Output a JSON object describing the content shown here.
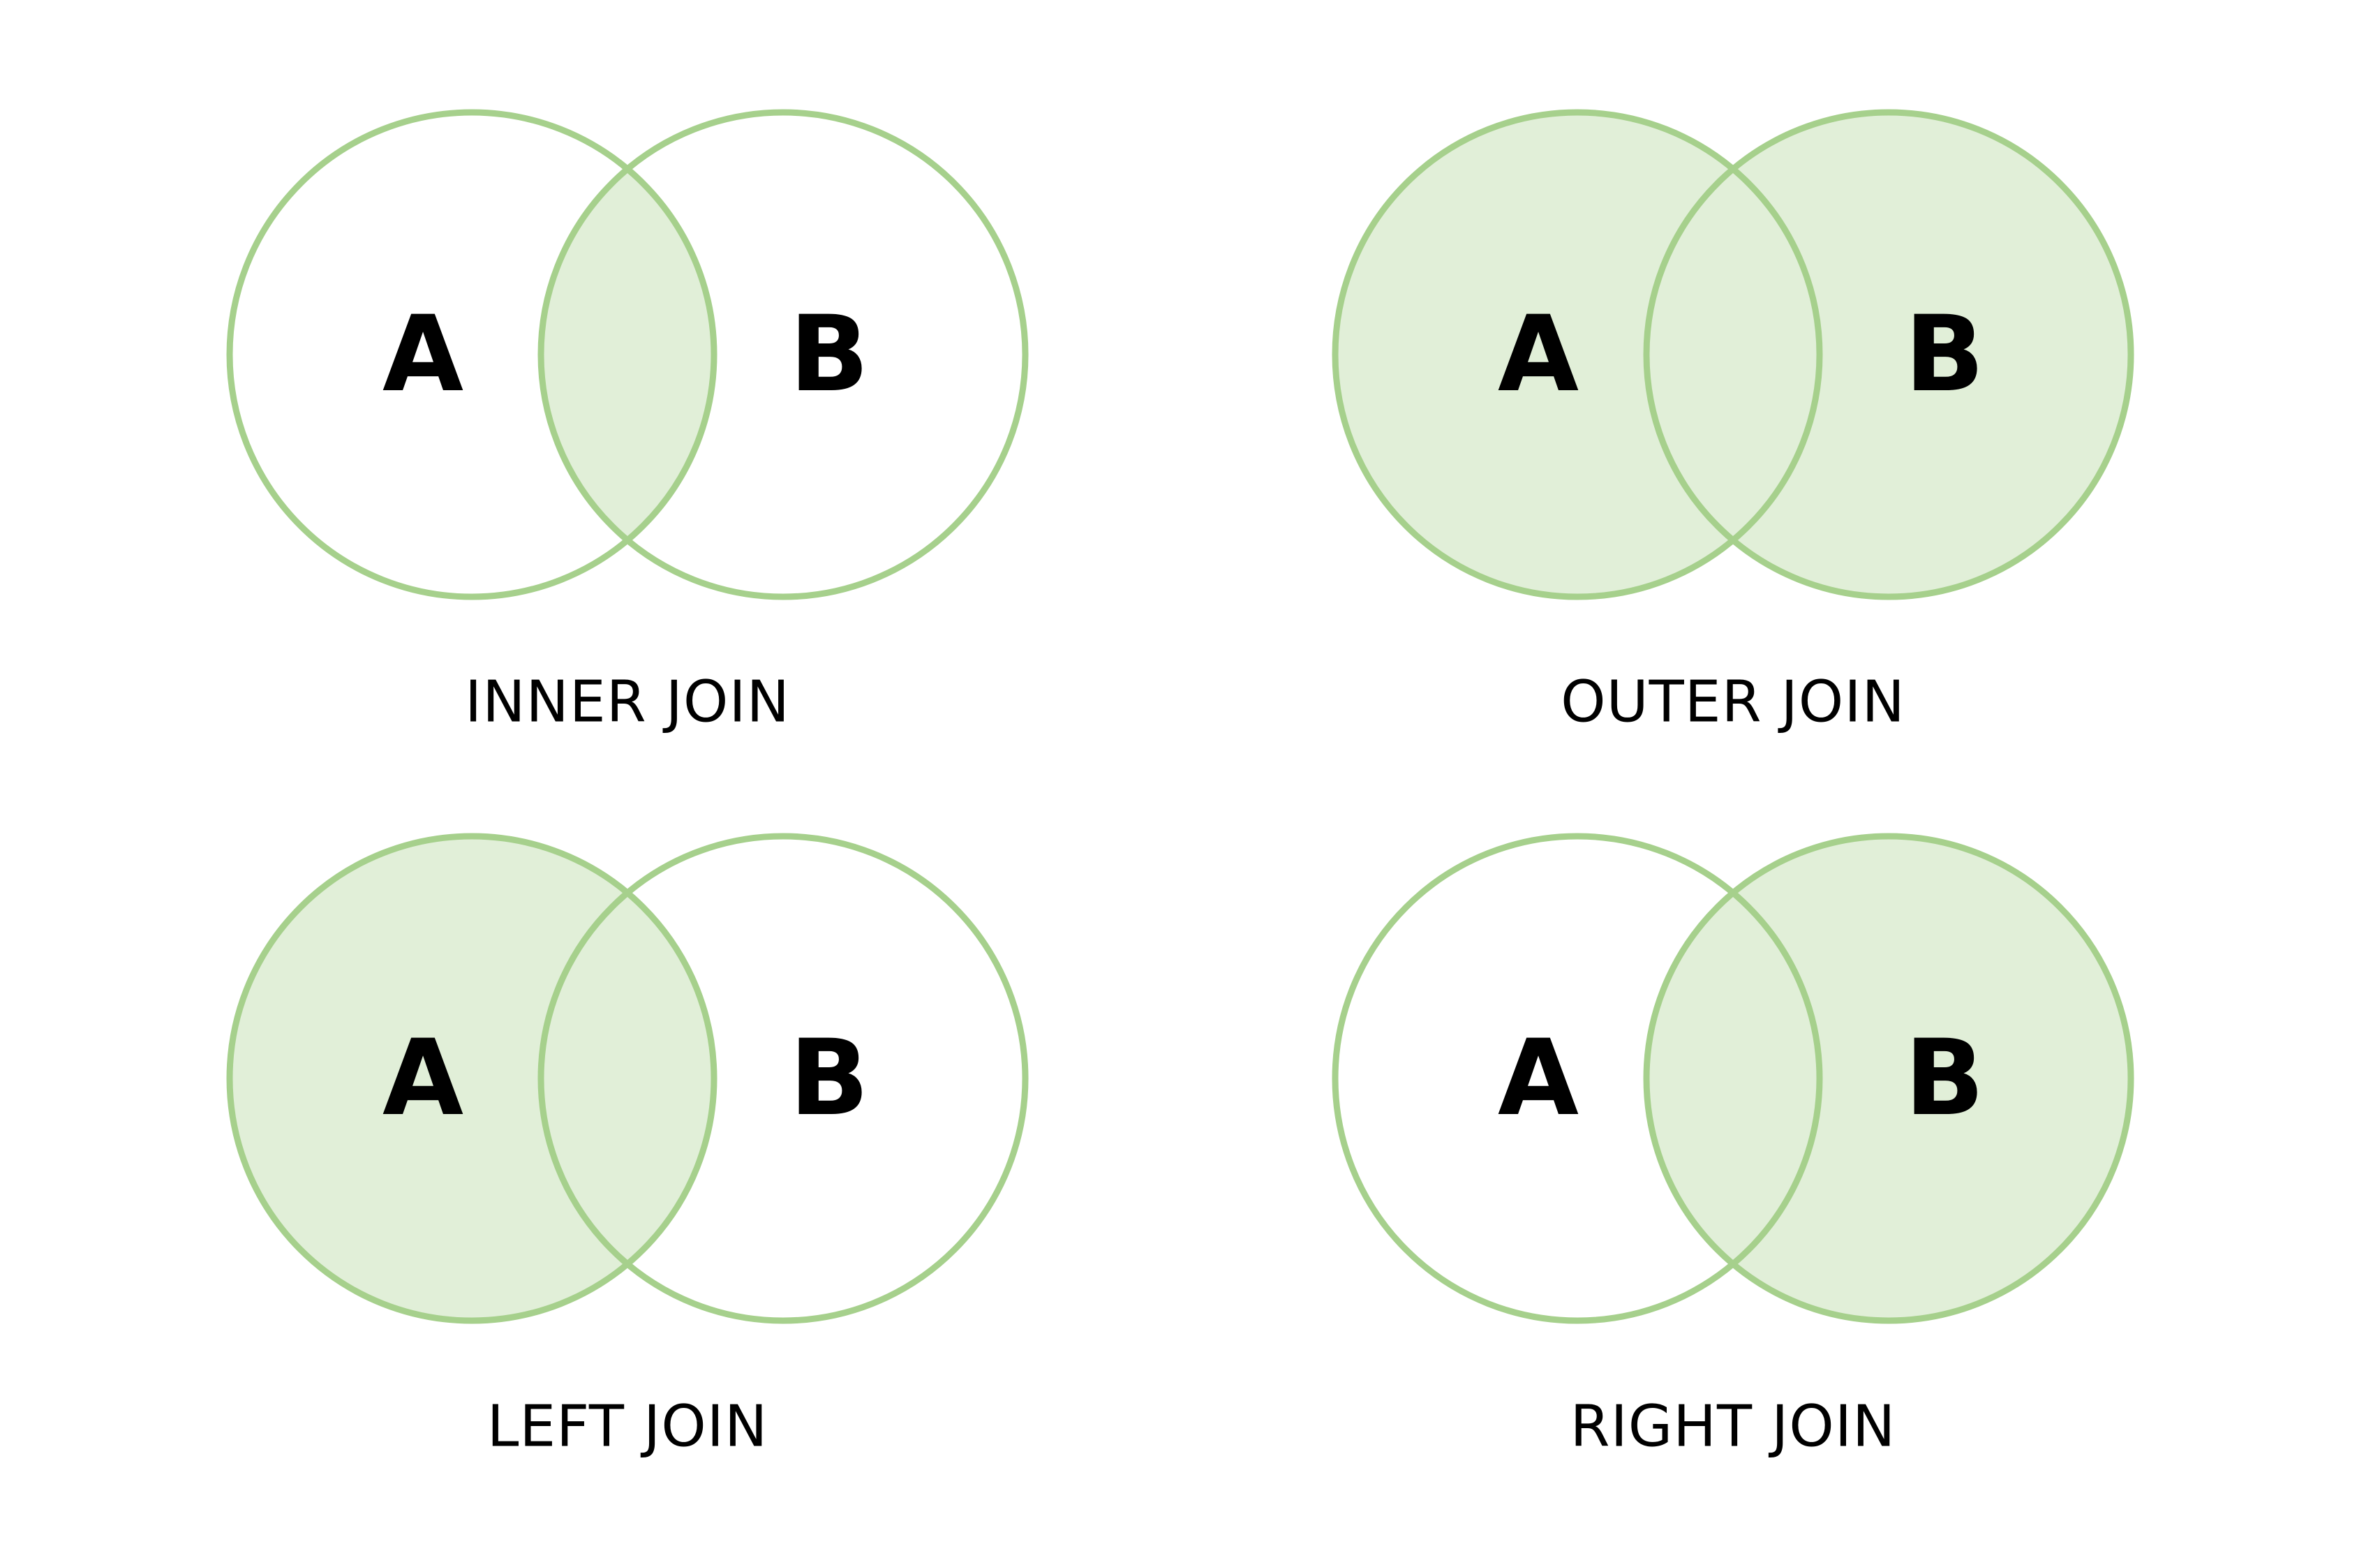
{
  "colors": {
    "stroke": "#a6d08c",
    "fill": "#e1efd8",
    "text": "#000000",
    "background": "#ffffff"
  },
  "diagrams": [
    {
      "id": "inner",
      "left_label": "A",
      "right_label": "B",
      "caption": "INNER JOIN",
      "shade_left": false,
      "shade_right": false,
      "shade_overlap": true
    },
    {
      "id": "outer",
      "left_label": "A",
      "right_label": "B",
      "caption": "OUTER JOIN",
      "shade_left": true,
      "shade_right": true,
      "shade_overlap": true
    },
    {
      "id": "left",
      "left_label": "A",
      "right_label": "B",
      "caption": "LEFT JOIN",
      "shade_left": true,
      "shade_right": false,
      "shade_overlap": true
    },
    {
      "id": "right",
      "left_label": "A",
      "right_label": "B",
      "caption": "RIGHT JOIN",
      "shade_left": false,
      "shade_right": true,
      "shade_overlap": true
    }
  ]
}
